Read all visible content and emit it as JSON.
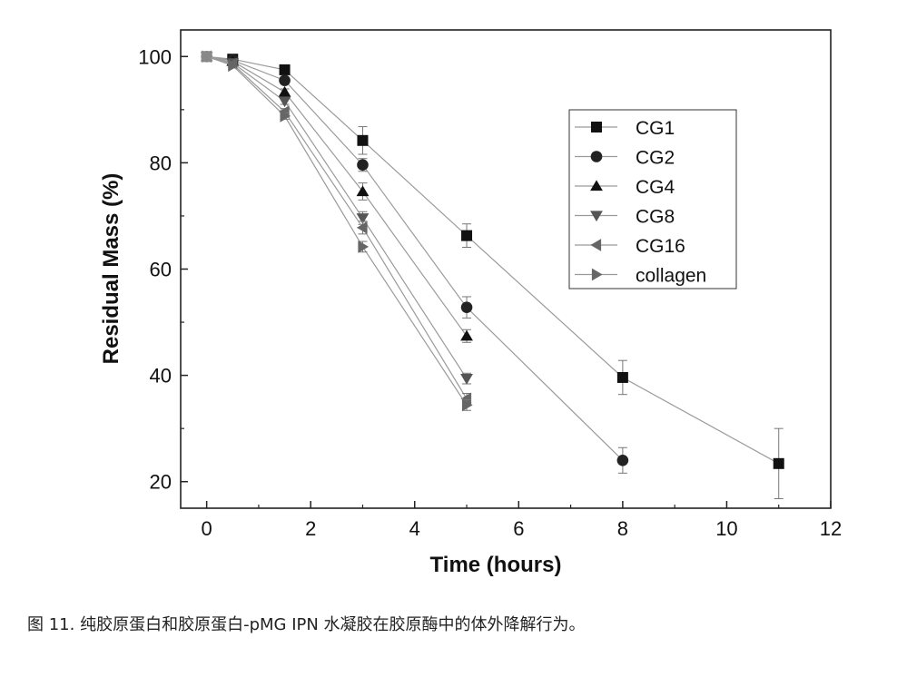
{
  "chart_data": {
    "type": "line",
    "title": "",
    "xlabel": "Time (hours)",
    "ylabel": "Residual Mass (%)",
    "xlim": [
      -0.5,
      12
    ],
    "ylim": [
      15,
      105
    ],
    "xticks": [
      0,
      2,
      4,
      6,
      8,
      10,
      12
    ],
    "yticks": [
      20,
      40,
      60,
      80,
      100
    ],
    "legend_position": "top-right",
    "series": [
      {
        "name": "CG1",
        "marker": "square",
        "color": "#111111",
        "x": [
          0,
          0.5,
          1.5,
          3,
          5,
          8,
          11
        ],
        "y": [
          100,
          99.5,
          97.5,
          84.2,
          66.3,
          39.6,
          23.4
        ],
        "err": [
          0,
          0,
          0.6,
          2.6,
          2.2,
          3.2,
          6.6
        ]
      },
      {
        "name": "CG2",
        "marker": "circle",
        "color": "#222222",
        "x": [
          0,
          0.5,
          1.5,
          3,
          5,
          8
        ],
        "y": [
          100,
          99.3,
          95.5,
          79.6,
          52.8,
          24.0
        ],
        "err": [
          0,
          0,
          0.6,
          1.2,
          2.0,
          2.4
        ]
      },
      {
        "name": "CG4",
        "marker": "triangle-up",
        "color": "#111111",
        "x": [
          0,
          0.5,
          1.5,
          3,
          5
        ],
        "y": [
          100,
          99.1,
          93.3,
          74.6,
          47.4
        ],
        "err": [
          0,
          0,
          0.6,
          1.6,
          1.2
        ]
      },
      {
        "name": "CG8",
        "marker": "triangle-down",
        "color": "#555555",
        "x": [
          0,
          0.5,
          1.5,
          3,
          5
        ],
        "y": [
          100,
          98.8,
          91.6,
          69.6,
          39.4
        ],
        "err": [
          0,
          0,
          0.6,
          1.2,
          1.0
        ]
      },
      {
        "name": "CG16",
        "marker": "triangle-left",
        "color": "#666666",
        "x": [
          0,
          0.5,
          1.5,
          3,
          5
        ],
        "y": [
          100,
          98.6,
          89.6,
          67.8,
          35.6
        ],
        "err": [
          0,
          0,
          0.6,
          1.2,
          1.0
        ]
      },
      {
        "name": "collagen",
        "marker": "triangle-right",
        "color": "#666666",
        "x": [
          0,
          0.5,
          1.5,
          3,
          5
        ],
        "y": [
          100,
          98.3,
          88.8,
          64.2,
          34.4
        ],
        "err": [
          0,
          0,
          0.6,
          1.0,
          1.0
        ]
      }
    ]
  },
  "caption": "图 11. 纯胶原蛋白和胶原蛋白-pMG IPN 水凝胶在胶原酶中的体外降解行为。"
}
